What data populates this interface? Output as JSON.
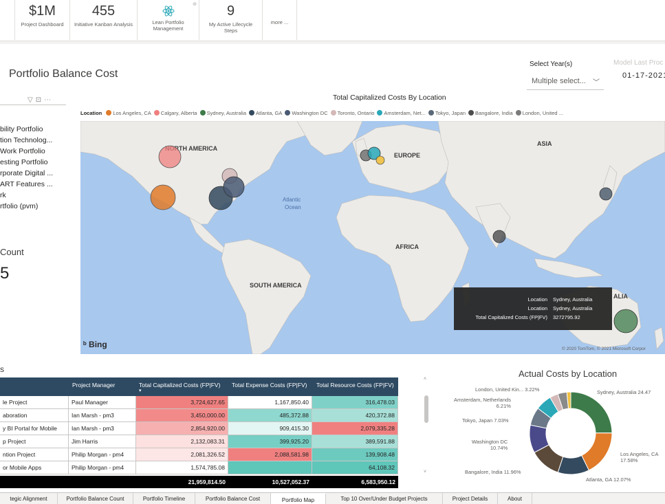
{
  "tiles": [
    {
      "value": "",
      "label": ""
    },
    {
      "value": "$1M",
      "label": "Project Dashboard"
    },
    {
      "value": "455",
      "label": "Initiative Kanban Analysis"
    },
    {
      "value": "",
      "label": "Lean Portfolio Management",
      "icon": "atom-icon"
    },
    {
      "value": "9",
      "label": "My Active Lifecycle Steps"
    },
    {
      "value": "",
      "label": "more ..."
    }
  ],
  "header": {
    "title": "Portfolio Balance Cost",
    "year_label": "Select Year(s)",
    "year_value": "Multiple select...",
    "refresh_label": "Model Last Proc",
    "refresh_date": "01-17-2021"
  },
  "slicer": {
    "items": [
      "bility Portfolio",
      "tion Technolog...",
      "Work Portfolio",
      "esting Portfolio",
      "rporate Digital ...",
      "ART Features ...",
      "rk",
      "rtfolio (pvm)"
    ]
  },
  "count_card": {
    "title": "Count",
    "value": "5"
  },
  "map": {
    "title": "Total Capitalized Costs By Location",
    "legend_title": "Location",
    "legend": [
      {
        "name": "Los Angeles, CA",
        "color": "#e07b2a"
      },
      {
        "name": "Calgary, Alberta",
        "color": "#f08080"
      },
      {
        "name": "Sydney, Australia",
        "color": "#3e7b4a"
      },
      {
        "name": "Atlanta, GA",
        "color": "#344a5e"
      },
      {
        "name": "Washington DC",
        "color": "#4a5a74"
      },
      {
        "name": "Toronto, Ontario",
        "color": "#d4b8b8"
      },
      {
        "name": "Amsterdam, Net...",
        "color": "#2aa8b8"
      },
      {
        "name": "Tokyo, Japan",
        "color": "#5a6878"
      },
      {
        "name": "Bangalore, India",
        "color": "#4d4d4d"
      },
      {
        "name": "London, United ...",
        "color": "#7a7a7a"
      }
    ],
    "labels": {
      "north_america": "NORTH AMERICA",
      "europe": "EUROPE",
      "asia": "ASIA",
      "africa": "AFRICA",
      "south_america": "SOUTH AMERICA",
      "atlantic": "Atlantic",
      "ocean": "Ocean",
      "australia": "ALIA"
    },
    "tooltip": {
      "k1": "Location",
      "v1": "Sydney, Australia",
      "k2": "Location",
      "v2": "Sydney, Australia",
      "k3": "Total Capitalized Costs (FP|FV)",
      "v3": "3272795.92"
    },
    "bing": "Bing",
    "copyright": "© 2020 TomTom, © 2021 Microsoft Corpor"
  },
  "table": {
    "title": "s",
    "headers": [
      "Project Manager",
      "Total Capitalized Costs (FP|FV)",
      "Total Expense Costs (FP|FV)",
      "Total Resource Costs (FP|FV)"
    ],
    "rows": [
      {
        "project": "le Project",
        "manager": "Paul Manager",
        "cap": "3,724,627.65",
        "exp": "1,167,850.40",
        "res": "316,478.03",
        "capc": "#f08080",
        "expc": "#ffffff",
        "resc": "#7fd1c8"
      },
      {
        "project": "aboration",
        "manager": "Ian Marsh - pm3",
        "cap": "3,450,000.00",
        "exp": "485,372.88",
        "res": "420,372.88",
        "capc": "#f28a8a",
        "expc": "#8fd8cf",
        "resc": "#a8e0d8"
      },
      {
        "project": "y BI Portal for Mobile",
        "manager": "Ian Marsh - pm3",
        "cap": "2,854,920.00",
        "exp": "909,415.30",
        "res": "2,079,335.28",
        "capc": "#f6b0b0",
        "expc": "#e4f6f3",
        "resc": "#f08080"
      },
      {
        "project": "p Project",
        "manager": "Jim Harris",
        "cap": "2,132,083.31",
        "exp": "399,925.20",
        "res": "389,591.88",
        "capc": "#fde0e0",
        "expc": "#76cfc4",
        "resc": "#a8e0d8"
      },
      {
        "project": "ntion Project",
        "manager": "Philip Morgan - pm4",
        "cap": "2,081,326.52",
        "exp": "2,088,581.98",
        "res": "139,908.48",
        "capc": "#fde6e6",
        "expc": "#f08080",
        "resc": "#6dcabf"
      },
      {
        "project": "or Mobile Apps",
        "manager": "Philip Morgan - pm4",
        "cap": "1,574,785.08",
        "exp": "",
        "res": "64,108.32",
        "capc": "#ffffff",
        "expc": "#5fc6ba",
        "resc": "#5fc6ba"
      }
    ],
    "totals": {
      "cap": "21,959,814.50",
      "exp": "10,527,052.37",
      "res": "6,583,950.12"
    }
  },
  "donut": {
    "title": "Actual Costs by Location",
    "slices": [
      {
        "name": "Sydney, Australia",
        "pct": 24.47,
        "color": "#3e7b4a",
        "label": "Sydney, Australia 24.47"
      },
      {
        "name": "Los Angeles, CA",
        "pct": 17.58,
        "color": "#e07b2a",
        "label": "Los Angeles, CA 17.58%"
      },
      {
        "name": "Atlanta, GA",
        "pct": 12.07,
        "color": "#344a5e",
        "label": "Atlanta, GA 12.07%"
      },
      {
        "name": "Bangalore, India",
        "pct": 11.96,
        "color": "#5b4a3a",
        "label": "Bangalore, India 11.96%"
      },
      {
        "name": "Washington DC",
        "pct": 10.74,
        "color": "#4a4a8a",
        "label": "Washington DC 10.74%"
      },
      {
        "name": "Tokyo, Japan",
        "pct": 7.03,
        "color": "#6a7888",
        "label": "Tokyo, Japan 7.03%"
      },
      {
        "name": "Amsterdam, Netherlands",
        "pct": 6.21,
        "color": "#2aa8b8",
        "label": "Amsterdam, Netherlands 6.21%"
      },
      {
        "name": "London, United Kin...",
        "pct": 3.22,
        "color": "#d4b8b8",
        "label": "London, United Kin... 3.22%"
      },
      {
        "name": "Calgary, Alberta",
        "pct": 3.5,
        "color": "#8a8a8a",
        "label": ""
      },
      {
        "name": "Toronto, Ontario",
        "pct": 1.5,
        "color": "#f0c040",
        "label": ""
      }
    ]
  },
  "tabs": [
    "tegic Alignment",
    "Portfolio Balance Count",
    "Portfolio Timeline",
    "Portfolio Balance Cost",
    "Portfolio Map",
    "Top 10 Over/Under Budget Projects",
    "Project Details",
    "About"
  ],
  "active_tab": "Portfolio Map"
}
